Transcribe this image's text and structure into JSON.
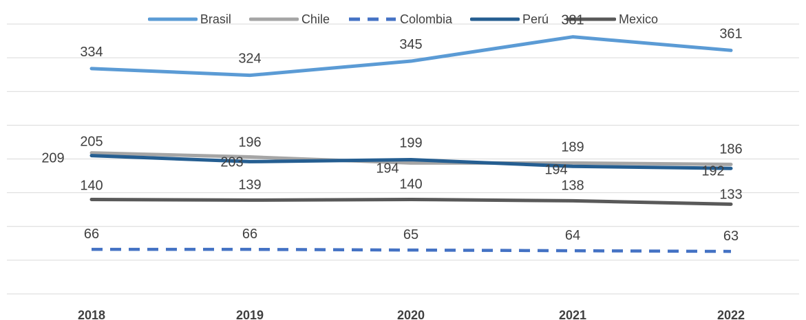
{
  "chart_data": {
    "type": "line",
    "title": "",
    "xlabel": "",
    "ylabel": "",
    "categories": [
      "2018",
      "2019",
      "2020",
      "2021",
      "2022"
    ],
    "ylim": [
      0,
      400
    ],
    "grid": true,
    "legend_position": "top",
    "series": [
      {
        "name": "Brasil",
        "values": [
          334,
          324,
          345,
          381,
          361
        ],
        "color": "#5b9bd5",
        "dash": "solid"
      },
      {
        "name": "Chile",
        "values": [
          209,
          203,
          194,
          194,
          192
        ],
        "color": "#a5a5a5",
        "dash": "solid"
      },
      {
        "name": "Colombia",
        "values": [
          66,
          66,
          65,
          64,
          63
        ],
        "color": "#4472c4",
        "dash": "dashed"
      },
      {
        "name": "Perú",
        "values": [
          205,
          196,
          199,
          189,
          186
        ],
        "color": "#255e91",
        "dash": "solid"
      },
      {
        "name": "Mexico",
        "values": [
          140,
          139,
          140,
          138,
          133
        ],
        "color": "#595959",
        "dash": "solid"
      }
    ]
  }
}
